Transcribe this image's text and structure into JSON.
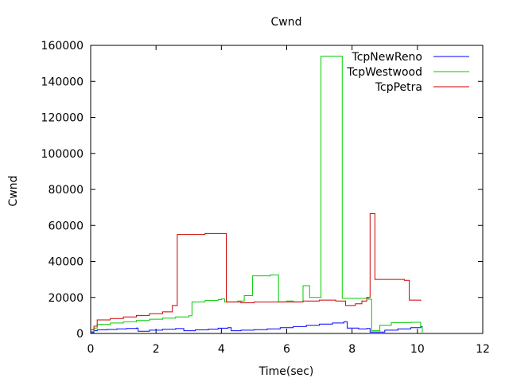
{
  "chart_data": {
    "type": "line",
    "title": "Cwnd",
    "xlabel": "Time(sec)",
    "ylabel": "Cwnd",
    "xlim": [
      0,
      12
    ],
    "ylim": [
      0,
      160000
    ],
    "xticks": [
      0,
      2,
      4,
      6,
      8,
      10,
      12
    ],
    "yticks": [
      0,
      20000,
      40000,
      60000,
      80000,
      100000,
      120000,
      140000,
      160000
    ],
    "legend_position": "top-right",
    "grid": false,
    "series": [
      {
        "name": "TcpNewReno",
        "color": "#0000ff",
        "x": [
          0.02,
          0.1,
          0.2,
          0.5,
          0.8,
          1.1,
          1.4,
          1.45,
          1.8,
          2.2,
          2.6,
          2.85,
          3.2,
          3.6,
          3.9,
          4.2,
          4.3,
          4.6,
          5.0,
          5.4,
          5.8,
          6.2,
          6.6,
          7.0,
          7.4,
          7.75,
          7.85,
          8.2,
          8.45,
          8.55,
          9.0,
          9.4,
          9.8,
          10.1,
          10.15
        ],
        "y": [
          500,
          1500,
          2000,
          2200,
          2500,
          2800,
          3000,
          1200,
          1800,
          2300,
          2700,
          1500,
          2000,
          2400,
          2900,
          3200,
          1500,
          1800,
          2100,
          2500,
          3200,
          3800,
          4500,
          5200,
          5800,
          6500,
          3000,
          2500,
          2800,
          800,
          1800,
          2500,
          3200,
          3800,
          800
        ]
      },
      {
        "name": "TcpWestwood",
        "color": "#00cc00",
        "x": [
          0.02,
          0.1,
          0.2,
          0.6,
          1.0,
          1.4,
          1.8,
          2.2,
          2.6,
          3.0,
          3.1,
          3.5,
          3.9,
          4.0,
          4.1,
          4.5,
          4.7,
          4.95,
          5.5,
          5.75,
          6.0,
          6.2,
          6.5,
          6.7,
          7.05,
          7.7,
          8.5,
          8.6,
          8.85,
          9.2,
          9.8,
          10.1,
          10.15
        ],
        "y": [
          1000,
          3000,
          5000,
          5800,
          6500,
          7200,
          7900,
          8500,
          9200,
          9800,
          17500,
          18300,
          18800,
          19200,
          17500,
          18000,
          21000,
          32000,
          32500,
          17500,
          18000,
          17500,
          26500,
          20000,
          154000,
          19500,
          19000,
          1500,
          4500,
          6000,
          6200,
          3500,
          500
        ]
      },
      {
        "name": "TcpPetra",
        "color": "#cc0000",
        "x": [
          0.02,
          0.1,
          0.2,
          0.6,
          1.0,
          1.4,
          1.8,
          2.2,
          2.5,
          2.65,
          3.0,
          3.5,
          4.0,
          4.15,
          4.6,
          5.0,
          5.4,
          6.0,
          6.5,
          7.0,
          7.5,
          7.8,
          8.1,
          8.3,
          8.45,
          8.55,
          8.7,
          9.2,
          9.6,
          9.75,
          10.1
        ],
        "y": [
          2000,
          4000,
          7500,
          8300,
          9200,
          10000,
          11000,
          12000,
          15500,
          55000,
          55000,
          55500,
          55500,
          17500,
          17000,
          17500,
          17500,
          17500,
          18000,
          18500,
          18000,
          15500,
          16500,
          18000,
          20000,
          66500,
          30000,
          30000,
          29500,
          18500,
          18000
        ]
      }
    ]
  }
}
